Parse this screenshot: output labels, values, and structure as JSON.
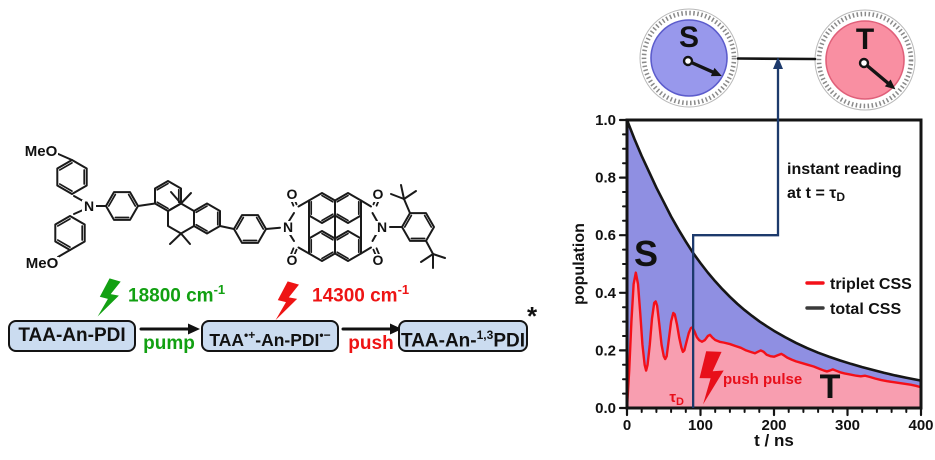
{
  "molecule": {
    "atoms": {
      "meo_top": "MeO",
      "meo_bottom": "MeO",
      "amine_n": "N",
      "imide_n_left": "N",
      "imide_n_right": "N",
      "o_top_left": "O",
      "o_bottom_left": "O",
      "o_top_right": "O",
      "o_bottom_right": "O"
    }
  },
  "scheme": {
    "box1": {
      "text": "TAA-An-PDI"
    },
    "box2": {
      "p1": "TAA",
      "s1": "•+",
      "p2": "-An-PDI",
      "s2": "•−"
    },
    "box3": {
      "p1": "TAA-An-",
      "s1": "1,3",
      "p2": "PDI",
      "star": "*"
    },
    "pump_label": "pump",
    "push_label": "push",
    "pump_energy": {
      "text": "18800 cm",
      "sup": "-1"
    },
    "push_energy": {
      "text": "14300 cm",
      "sup": "-1"
    },
    "colors": {
      "pump": "#12a012",
      "push": "#ee1414",
      "box_fill": "#cbdcf0",
      "box_border": "#141414"
    }
  },
  "chart_data": {
    "type": "area",
    "xlabel": "t / ns",
    "ylabel": "population",
    "xlim": [
      0,
      400
    ],
    "ylim": [
      0,
      1.0
    ],
    "xticks": [
      0,
      100,
      200,
      300,
      400
    ],
    "yticks": [
      0.0,
      0.2,
      0.4,
      0.6,
      0.8,
      1.0
    ],
    "x_minor_step_ns": 20,
    "y_minor_step": 0.05,
    "legend_position": "middle-right",
    "series": [
      {
        "name": "total CSS",
        "color": "#161616",
        "points": [
          [
            0,
            1.0
          ],
          [
            10,
            0.935
          ],
          [
            20,
            0.875
          ],
          [
            30,
            0.82
          ],
          [
            40,
            0.765
          ],
          [
            50,
            0.715
          ],
          [
            60,
            0.665
          ],
          [
            70,
            0.62
          ],
          [
            80,
            0.578
          ],
          [
            90,
            0.538
          ],
          [
            100,
            0.503
          ],
          [
            110,
            0.47
          ],
          [
            120,
            0.44
          ],
          [
            130,
            0.412
          ],
          [
            140,
            0.386
          ],
          [
            150,
            0.362
          ],
          [
            160,
            0.34
          ],
          [
            170,
            0.32
          ],
          [
            180,
            0.301
          ],
          [
            190,
            0.284
          ],
          [
            200,
            0.268
          ],
          [
            215,
            0.246
          ],
          [
            230,
            0.226
          ],
          [
            245,
            0.208
          ],
          [
            260,
            0.192
          ],
          [
            275,
            0.178
          ],
          [
            290,
            0.165
          ],
          [
            305,
            0.153
          ],
          [
            320,
            0.142
          ],
          [
            335,
            0.132
          ],
          [
            350,
            0.122
          ],
          [
            365,
            0.113
          ],
          [
            380,
            0.105
          ],
          [
            400,
            0.095
          ]
        ]
      },
      {
        "name": "triplet CSS",
        "color": "#f41019",
        "points": [
          [
            0,
            0
          ],
          [
            3,
            0.13
          ],
          [
            6,
            0.3
          ],
          [
            9,
            0.43
          ],
          [
            12,
            0.47
          ],
          [
            15,
            0.43
          ],
          [
            18,
            0.33
          ],
          [
            21,
            0.22
          ],
          [
            24,
            0.15
          ],
          [
            26,
            0.13
          ],
          [
            28,
            0.15
          ],
          [
            31,
            0.22
          ],
          [
            34,
            0.31
          ],
          [
            37,
            0.365
          ],
          [
            39,
            0.37
          ],
          [
            41,
            0.355
          ],
          [
            44,
            0.29
          ],
          [
            47,
            0.22
          ],
          [
            50,
            0.18
          ],
          [
            52,
            0.17
          ],
          [
            54,
            0.18
          ],
          [
            57,
            0.24
          ],
          [
            60,
            0.3
          ],
          [
            63,
            0.33
          ],
          [
            65,
            0.325
          ],
          [
            68,
            0.29
          ],
          [
            71,
            0.245
          ],
          [
            74,
            0.21
          ],
          [
            76,
            0.195
          ],
          [
            78,
            0.2
          ],
          [
            81,
            0.23
          ],
          [
            84,
            0.26
          ],
          [
            87,
            0.278
          ],
          [
            89,
            0.28
          ],
          [
            92,
            0.265
          ],
          [
            95,
            0.246
          ],
          [
            98,
            0.236
          ],
          [
            102,
            0.23
          ],
          [
            106,
            0.236
          ],
          [
            110,
            0.25
          ],
          [
            113,
            0.254
          ],
          [
            116,
            0.245
          ],
          [
            120,
            0.236
          ],
          [
            126,
            0.23
          ],
          [
            132,
            0.227
          ],
          [
            140,
            0.222
          ],
          [
            148,
            0.215
          ],
          [
            155,
            0.209
          ],
          [
            162,
            0.2
          ],
          [
            168,
            0.195
          ],
          [
            174,
            0.19
          ],
          [
            178,
            0.195
          ],
          [
            182,
            0.2
          ],
          [
            186,
            0.195
          ],
          [
            190,
            0.185
          ],
          [
            195,
            0.18
          ],
          [
            200,
            0.178
          ],
          [
            205,
            0.183
          ],
          [
            210,
            0.188
          ],
          [
            214,
            0.182
          ],
          [
            218,
            0.175
          ],
          [
            224,
            0.168
          ],
          [
            230,
            0.162
          ],
          [
            238,
            0.156
          ],
          [
            246,
            0.15
          ],
          [
            254,
            0.144
          ],
          [
            262,
            0.136
          ],
          [
            268,
            0.13
          ],
          [
            272,
            0.127
          ],
          [
            276,
            0.13
          ],
          [
            280,
            0.134
          ],
          [
            284,
            0.13
          ],
          [
            290,
            0.124
          ],
          [
            296,
            0.12
          ],
          [
            304,
            0.116
          ],
          [
            312,
            0.112
          ],
          [
            318,
            0.11
          ],
          [
            324,
            0.112
          ],
          [
            330,
            0.108
          ],
          [
            338,
            0.102
          ],
          [
            346,
            0.097
          ],
          [
            354,
            0.093
          ],
          [
            362,
            0.09
          ],
          [
            370,
            0.087
          ],
          [
            378,
            0.084
          ],
          [
            386,
            0.081
          ],
          [
            393,
            0.077
          ],
          [
            400,
            0.072
          ]
        ]
      }
    ],
    "fills": {
      "singlet": "#8f8fe2",
      "triplet": "#f89eb0"
    },
    "legend": [
      {
        "label": "triplet CSS",
        "color": "#f41019"
      },
      {
        "label": "total CSS",
        "color": "#3a3a3a"
      }
    ],
    "annotations": {
      "singlet_label": "S",
      "triplet_label": "T",
      "tau_label": {
        "base": "τ",
        "sub": "D"
      },
      "tau_d_ns": 90,
      "reading_step_population": 0.6,
      "push_pulse": "push pulse",
      "instant_line1": "instant reading",
      "instant_line2_pre": "at t =  ",
      "instant_line2_tau": "τ",
      "instant_line2_sub": "D",
      "line_color": "#1d3a6c"
    }
  },
  "dials": {
    "left": {
      "label": "S",
      "fill": "#9898ec",
      "edge": "#5c5ccc"
    },
    "right": {
      "label": "T",
      "fill": "#f98fa2",
      "edge": "#e0607a"
    }
  }
}
